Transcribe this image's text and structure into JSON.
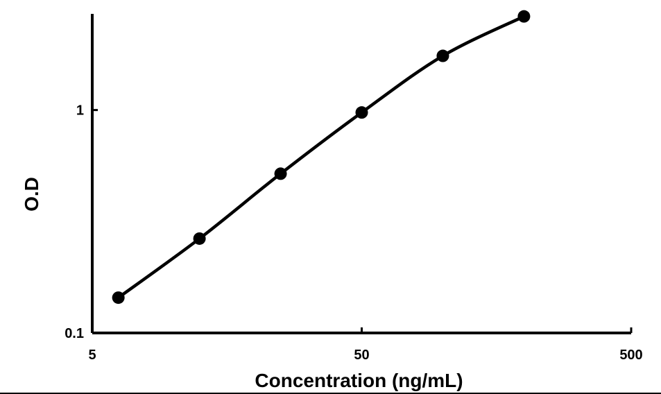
{
  "chart_data": {
    "type": "line",
    "title": "",
    "xlabel": "Concentration (ng/mL)",
    "ylabel": "O.D",
    "x_scale": "log",
    "y_scale": "log",
    "xlim": [
      5,
      500
    ],
    "ylim": [
      0.1,
      2.7
    ],
    "x_ticks": [
      5,
      50,
      500
    ],
    "x_tick_labels": [
      "5",
      "50",
      "500"
    ],
    "y_ticks": [
      0.1,
      1
    ],
    "y_tick_labels": [
      "0.1",
      "1"
    ],
    "grid": false,
    "legend": "none",
    "series": [
      {
        "x": [
          6.25,
          12.5,
          25,
          50,
          100,
          200
        ],
        "y": [
          0.144,
          0.265,
          0.518,
          0.975,
          1.75,
          2.63
        ],
        "color": "#000000",
        "marker": "circle"
      }
    ]
  }
}
